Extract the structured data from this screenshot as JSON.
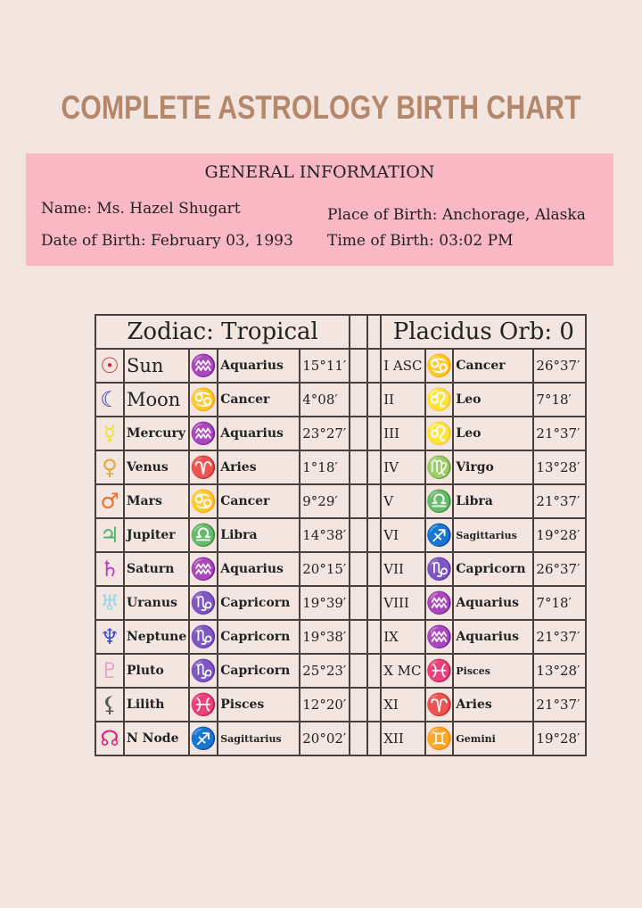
{
  "title": "COMPLETE ASTROLOGY BIRTH CHART",
  "general": {
    "heading": "GENERAL INFORMATION",
    "name": "Name: Ms. Hazel Shugart",
    "dob": "Date of Birth: February 03, 1993",
    "pob": "Place of Birth: Anchorage, Alaska",
    "tob": "Time of Birth: 03:02 PM"
  },
  "zodiac_header": "Zodiac: Tropical",
  "placidus_header": "Placidus Orb: 0",
  "colors": {
    "accent_title": "#b5876a",
    "info_bg": "#f9b8c4",
    "page_bg": "#f3e6e1"
  },
  "planets": [
    {
      "icon": "sun-icon",
      "glyph": "☉",
      "color": "#c0343f",
      "name": "Sun",
      "sign_glyph": "♒",
      "sign_color": "#6b6fe0",
      "sign": "Aquarius",
      "degree": "15°11′"
    },
    {
      "icon": "moon-icon",
      "glyph": "☾",
      "color": "#2a3aa0",
      "name": "Moon",
      "sign_glyph": "♋",
      "sign_color": "#5cc07a",
      "sign": "Cancer",
      "degree": "4°08′"
    },
    {
      "icon": "mercury-icon",
      "glyph": "☿",
      "color": "#e8e23a",
      "name": "Mercury",
      "sign_glyph": "♒",
      "sign_color": "#6b6fe0",
      "sign": "Aquarius",
      "degree": "23°27′"
    },
    {
      "icon": "venus-icon",
      "glyph": "♀",
      "color": "#e0a93a",
      "name": "Venus",
      "sign_glyph": "♈",
      "sign_color": "#c0343f",
      "sign": "Aries",
      "degree": "1°18′"
    },
    {
      "icon": "mars-icon",
      "glyph": "♂",
      "color": "#e8702a",
      "name": "Mars",
      "sign_glyph": "♋",
      "sign_color": "#5cc07a",
      "sign": "Cancer",
      "degree": "9°29′"
    },
    {
      "icon": "jupiter-icon",
      "glyph": "♃",
      "color": "#4caf6a",
      "name": "Jupiter",
      "sign_glyph": "♎",
      "sign_color": "#e0358a",
      "sign": "Libra",
      "degree": "14°38′"
    },
    {
      "icon": "saturn-icon",
      "glyph": "♄",
      "color": "#c030d0",
      "name": "Saturn",
      "sign_glyph": "♒",
      "sign_color": "#6b6fe0",
      "sign": "Aquarius",
      "degree": "20°15′"
    },
    {
      "icon": "uranus-icon",
      "glyph": "♅",
      "color": "#9ad4ea",
      "name": "Uranus",
      "sign_glyph": "♑",
      "sign_color": "#e8a82a",
      "sign": "Capricorn",
      "degree": "19°39′"
    },
    {
      "icon": "neptune-icon",
      "glyph": "♆",
      "color": "#3a50d0",
      "name": "Neptune",
      "sign_glyph": "♑",
      "sign_color": "#e8a82a",
      "sign": "Capricorn",
      "degree": "19°38′"
    },
    {
      "icon": "pluto-icon",
      "glyph": "♇",
      "color": "#e8a0c0",
      "name": "Pluto",
      "sign_glyph": "♑",
      "sign_color": "#e8a82a",
      "sign": "Capricorn",
      "degree": "25°23′"
    },
    {
      "icon": "lilith-icon",
      "glyph": "⚸",
      "color": "#555555",
      "name": "Lilith",
      "sign_glyph": "♓",
      "sign_color": "#f0b8c0",
      "sign": "Pisces",
      "degree": "12°20′"
    },
    {
      "icon": "north-node-icon",
      "glyph": "☊",
      "color": "#e0207a",
      "name": "N Node",
      "sign_glyph": "♐",
      "sign_color": "#e8e23a",
      "sign": "Sagittarius",
      "degree": "20°02′"
    }
  ],
  "houses": [
    {
      "house": "I ASC",
      "sign_glyph": "♋",
      "sign_color": "#5cc07a",
      "sign": "Cancer",
      "degree": "26°37′"
    },
    {
      "house": "II",
      "sign_glyph": "♌",
      "sign_color": "#e8802a",
      "sign": "Leo",
      "degree": "7°18′"
    },
    {
      "house": "III",
      "sign_glyph": "♌",
      "sign_color": "#e8802a",
      "sign": "Leo",
      "degree": "21°37′"
    },
    {
      "house": "IV",
      "sign_glyph": "♍",
      "sign_color": "#3a50b0",
      "sign": "Virgo",
      "degree": "13°28′"
    },
    {
      "house": "V",
      "sign_glyph": "♎",
      "sign_color": "#e0358a",
      "sign": "Libra",
      "degree": "21°37′"
    },
    {
      "house": "VI",
      "sign_glyph": "♐",
      "sign_color": "#e8e23a",
      "sign": "Sagittarius",
      "degree": "19°28′"
    },
    {
      "house": "VII",
      "sign_glyph": "♑",
      "sign_color": "#e8a82a",
      "sign": "Capricorn",
      "degree": "26°37′"
    },
    {
      "house": "VIII",
      "sign_glyph": "♒",
      "sign_color": "#6b6fe0",
      "sign": "Aquarius",
      "degree": "7°18′"
    },
    {
      "house": "IX",
      "sign_glyph": "♒",
      "sign_color": "#6b6fe0",
      "sign": "Aquarius",
      "degree": "21°37′"
    },
    {
      "house": "X MC",
      "sign_glyph": "♓",
      "sign_color": "#f0b8c0",
      "sign": "Pisces",
      "degree": "13°28′"
    },
    {
      "house": "XI",
      "sign_glyph": "♈",
      "sign_color": "#c0343f",
      "sign": "Aries",
      "degree": "21°37′"
    },
    {
      "house": "XII",
      "sign_glyph": "♊",
      "sign_color": "#333333",
      "sign": "Gemini",
      "degree": "19°28′"
    }
  ]
}
